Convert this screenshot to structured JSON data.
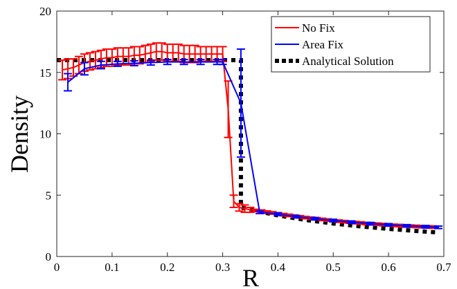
{
  "chart_data": {
    "type": "line",
    "title": "",
    "xlabel": "R",
    "ylabel": "Density",
    "xlim": [
      0,
      0.7
    ],
    "ylim": [
      0,
      20
    ],
    "xticks": [
      0,
      0.1,
      0.2,
      0.3,
      0.4,
      0.5,
      0.6,
      0.7
    ],
    "xtick_labels": [
      "0",
      "0.1",
      "0.2",
      "0.3",
      "0.4",
      "0.5",
      "0.6",
      "0.7"
    ],
    "yticks": [
      0,
      5,
      10,
      15,
      20
    ],
    "ytick_labels": [
      "0",
      "5",
      "10",
      "15",
      "20"
    ],
    "grid": false,
    "legend_position": "top-right",
    "series": [
      {
        "name": "No Fix",
        "color": "#ff0000",
        "style": "solid",
        "x": [
          0.01,
          0.02,
          0.03,
          0.04,
          0.05,
          0.06,
          0.07,
          0.08,
          0.09,
          0.1,
          0.11,
          0.12,
          0.13,
          0.14,
          0.15,
          0.16,
          0.17,
          0.18,
          0.19,
          0.2,
          0.21,
          0.22,
          0.23,
          0.24,
          0.25,
          0.26,
          0.27,
          0.28,
          0.29,
          0.3,
          0.31,
          0.32,
          0.33,
          0.34,
          0.35,
          0.36,
          0.37,
          0.38,
          0.39,
          0.4,
          0.41,
          0.42,
          0.43,
          0.44,
          0.45,
          0.46,
          0.47,
          0.48,
          0.49,
          0.5,
          0.51,
          0.52,
          0.53,
          0.54,
          0.55,
          0.56,
          0.57,
          0.58,
          0.59,
          0.6,
          0.61,
          0.62,
          0.63,
          0.64,
          0.65,
          0.66,
          0.67,
          0.68,
          0.69
        ],
        "y": [
          15.2,
          15.3,
          15.4,
          15.6,
          15.8,
          15.9,
          16.0,
          16.1,
          16.2,
          16.2,
          16.3,
          16.3,
          16.3,
          16.4,
          16.4,
          16.5,
          16.6,
          16.7,
          16.7,
          16.6,
          16.6,
          16.6,
          16.5,
          16.5,
          16.5,
          16.5,
          16.5,
          16.5,
          16.5,
          16.5,
          12.0,
          4.5,
          4.0,
          3.9,
          3.8,
          3.75,
          3.7,
          3.62,
          3.55,
          3.48,
          3.41,
          3.35,
          3.29,
          3.23,
          3.17,
          3.12,
          3.07,
          3.02,
          2.97,
          2.93,
          2.88,
          2.84,
          2.8,
          2.76,
          2.73,
          2.69,
          2.66,
          2.63,
          2.6,
          2.57,
          2.54,
          2.52,
          2.49,
          2.47,
          2.45,
          2.43,
          2.41,
          2.4,
          2.38
        ],
        "err": [
          0.8,
          0.8,
          0.7,
          0.7,
          0.7,
          0.7,
          0.7,
          0.7,
          0.7,
          0.7,
          0.7,
          0.7,
          0.7,
          0.7,
          0.7,
          0.7,
          0.7,
          0.7,
          0.7,
          0.7,
          0.7,
          0.7,
          0.7,
          0.7,
          0.7,
          0.6,
          0.6,
          0.6,
          0.6,
          0.6,
          2.3,
          0.5,
          0.3,
          0.3,
          0.2,
          0.1,
          0.1,
          0.1,
          0.1,
          0.1,
          0.1,
          0.1,
          0.1,
          0.1,
          0.1,
          0.1,
          0.1,
          0.1,
          0.1,
          0.1,
          0.1,
          0.1,
          0.1,
          0.1,
          0.1,
          0.1,
          0.1,
          0.1,
          0.1,
          0.1,
          0.1,
          0.1,
          0.1,
          0.1,
          0.1,
          0.1,
          0.1,
          0.1,
          0.1
        ]
      },
      {
        "name": "Area Fix",
        "color": "#0000ff",
        "style": "solid",
        "x": [
          0.02,
          0.05,
          0.08,
          0.11,
          0.14,
          0.17,
          0.2,
          0.23,
          0.26,
          0.29,
          0.3,
          0.333,
          0.367,
          0.4,
          0.433,
          0.467,
          0.5,
          0.533,
          0.567,
          0.6,
          0.633,
          0.667,
          0.69
        ],
        "y": [
          14.2,
          15.3,
          15.6,
          15.7,
          15.75,
          15.8,
          15.85,
          15.85,
          15.85,
          15.85,
          15.85,
          12.5,
          3.6,
          3.45,
          3.25,
          3.08,
          2.93,
          2.8,
          2.68,
          2.58,
          2.5,
          2.43,
          2.38
        ],
        "err": [
          0.7,
          0.5,
          0.3,
          0.2,
          0.2,
          0.2,
          0.2,
          0.2,
          0.2,
          0.2,
          0.2,
          4.4,
          0.1,
          0.1,
          0.1,
          0.1,
          0.1,
          0.1,
          0.1,
          0.1,
          0.1,
          0.1,
          0.1
        ]
      },
      {
        "name": "Analytical Solution",
        "color": "#000000",
        "style": "dotted",
        "x": [
          0.0,
          0.333,
          0.333,
          0.36,
          0.4,
          0.45,
          0.5,
          0.55,
          0.6,
          0.65,
          0.69
        ],
        "y": [
          16.0,
          16.0,
          4.0,
          3.72,
          3.35,
          2.98,
          2.69,
          2.45,
          2.25,
          2.08,
          1.96
        ]
      }
    ]
  }
}
